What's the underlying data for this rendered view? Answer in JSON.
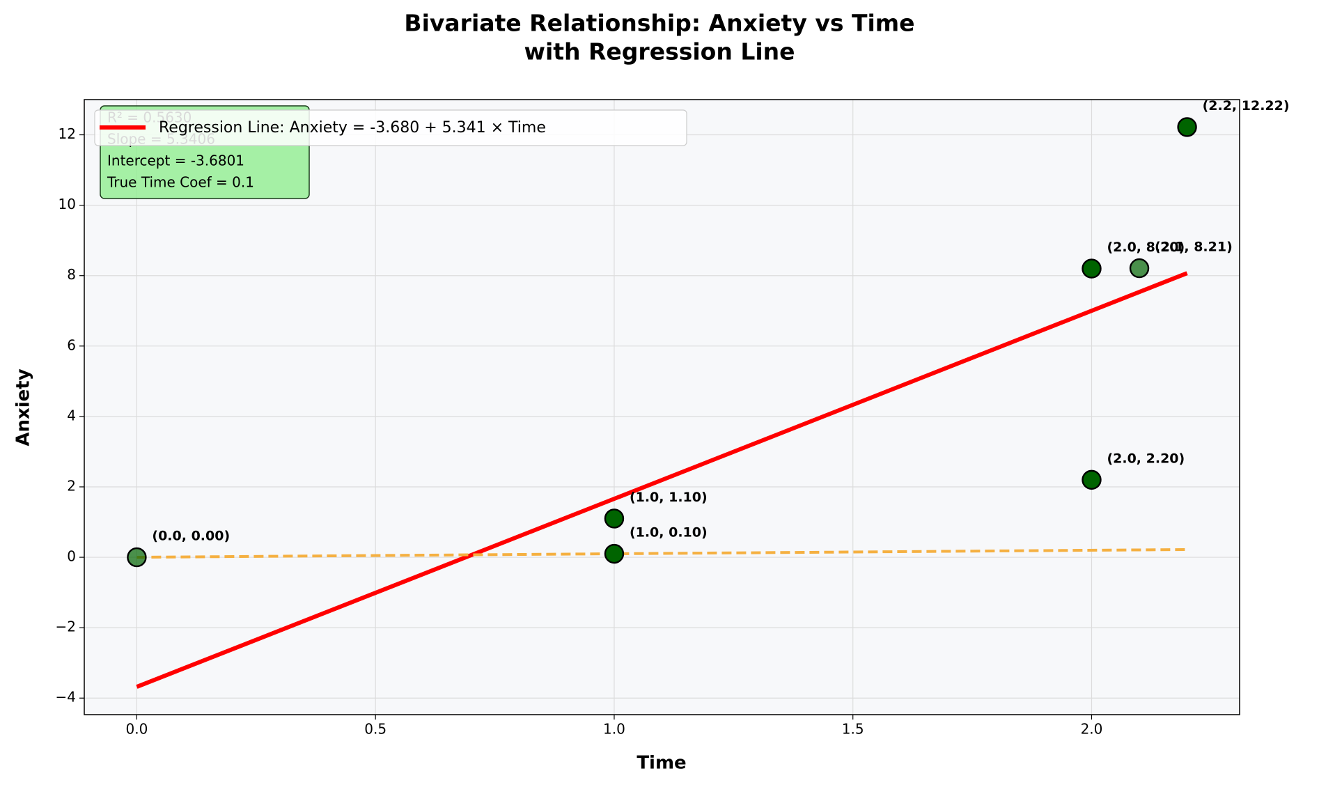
{
  "chart_data": {
    "type": "scatter",
    "title": [
      "Bivariate Relationship: Anxiety vs Time",
      "with Regression Line"
    ],
    "x_label": "Time",
    "y_label": "Anxiety",
    "xlim": [
      -0.11,
      2.31
    ],
    "ylim": [
      -4.47,
      13.0
    ],
    "xticks": [
      {
        "value": 0,
        "label": "0.0"
      },
      {
        "value": 0.5,
        "label": "0.5"
      },
      {
        "value": 1,
        "label": "1.0"
      },
      {
        "value": 1.5,
        "label": "1.5"
      },
      {
        "value": 2,
        "label": "2.0"
      }
    ],
    "yticks": [
      {
        "value": -4,
        "label": "−4"
      },
      {
        "value": -2,
        "label": "−2"
      },
      0,
      2,
      4,
      6,
      8,
      10,
      12
    ],
    "grid": true,
    "legend": "upper left",
    "annotation": [
      "R² = 0.5630",
      "Slope = 5.3406",
      "Intercept = -3.6801",
      "True Time Coef = 0.1"
    ],
    "series": [
      {
        "type": "scatter",
        "color": "#006400",
        "x": [
          0,
          1,
          1,
          2,
          2,
          2.1,
          2.2
        ],
        "values": [
          0,
          0.1,
          1.1,
          2.2,
          8.2,
          8.21,
          12.22
        ],
        "value_labels": [
          "(0.0, 0.00)",
          "(1.0, 0.10)",
          "(1.0, 1.10)",
          "(2.0, 2.20)",
          "(2.0, 8.20)",
          "(2.1, 8.21)",
          "(2.2, 12.22)"
        ],
        "alpha": [
          0.7,
          1,
          1,
          1,
          1,
          0.7,
          1
        ]
      },
      {
        "type": "line",
        "name": "Regression Line: Anxiety = -3.680 + 5.341 × Time",
        "color": "#ff0000",
        "x": [
          0,
          2.2
        ],
        "values": [
          -3.68,
          8.07
        ]
      },
      {
        "type": "line",
        "color": "#f5b041",
        "dashed": true,
        "x": [
          0,
          2.2
        ],
        "values": [
          0,
          0.22
        ]
      }
    ]
  }
}
